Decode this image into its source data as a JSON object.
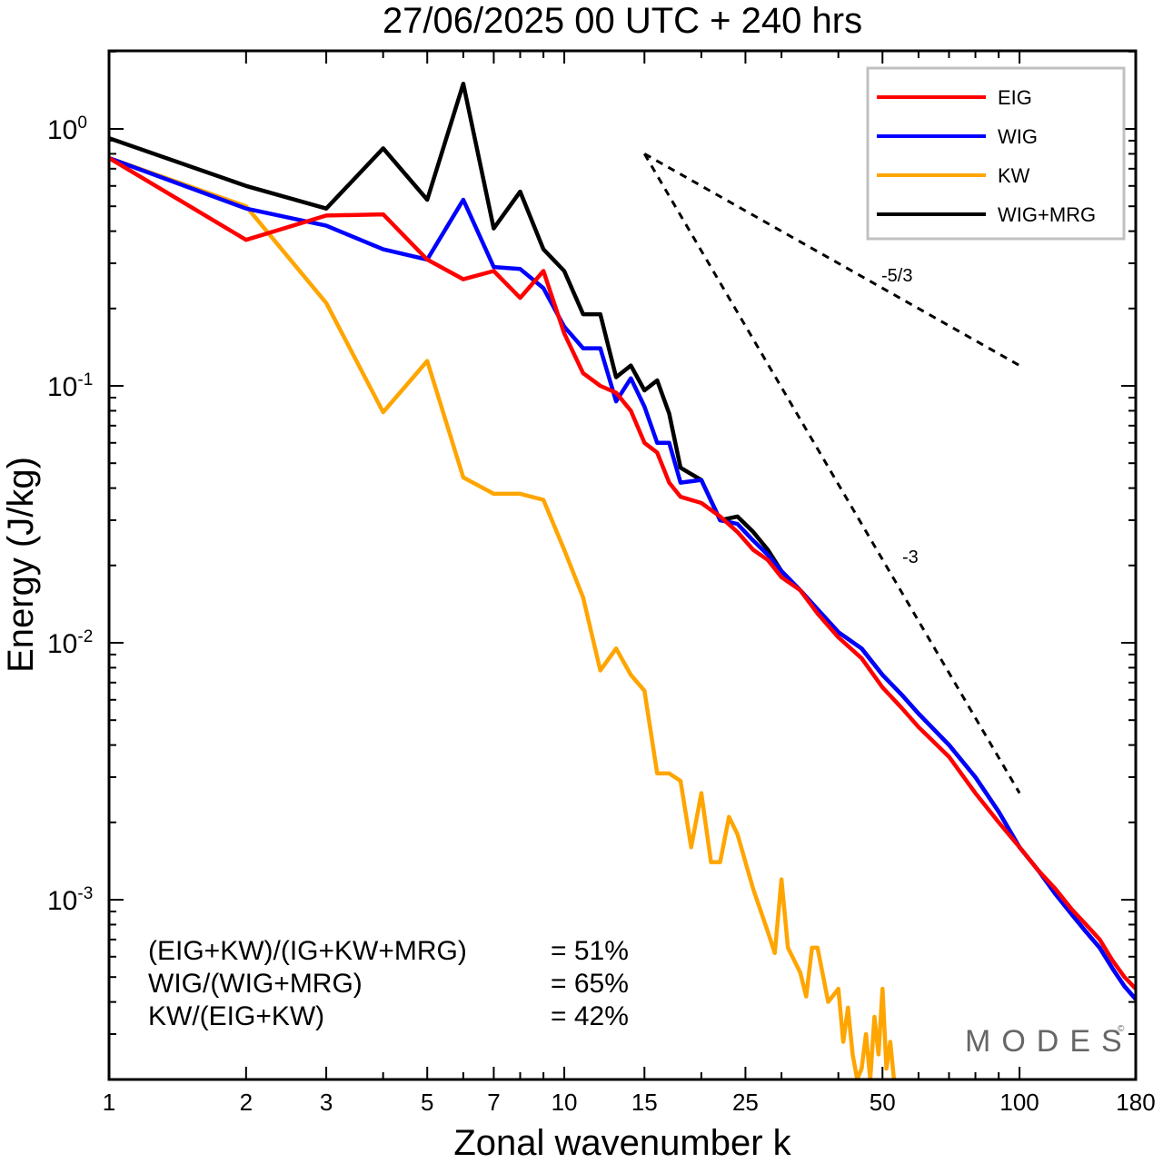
{
  "chart_data": {
    "type": "line",
    "title": "27/06/2025  00 UTC  + 240 hrs",
    "xlabel": "Zonal wavenumber k",
    "ylabel": "Energy (J/kg)",
    "xscale": "log",
    "yscale": "log",
    "xlim": [
      1,
      180
    ],
    "ylim": [
      0.0002,
      2.0
    ],
    "xticks": [
      1,
      2,
      3,
      5,
      7,
      10,
      15,
      25,
      50,
      100,
      180
    ],
    "xtick_labels": [
      "1",
      "2",
      "3",
      "5",
      "7",
      "10",
      "15",
      "25",
      "50",
      "100",
      "180"
    ],
    "yticks": [
      {
        "value": 1.0,
        "base": "10",
        "exp": "0"
      },
      {
        "value": 0.1,
        "base": "10",
        "exp": "-1"
      },
      {
        "value": 0.01,
        "base": "10",
        "exp": "-2"
      },
      {
        "value": 0.001,
        "base": "10",
        "exp": "-3"
      }
    ],
    "legend_position": "top-right",
    "grid": false,
    "series": [
      {
        "name": "EIG",
        "color": "#ff0000",
        "points": [
          [
            1,
            0.77
          ],
          [
            2,
            0.37
          ],
          [
            3,
            0.46
          ],
          [
            4,
            0.465
          ],
          [
            5,
            0.31
          ],
          [
            6,
            0.26
          ],
          [
            7,
            0.28
          ],
          [
            8,
            0.22
          ],
          [
            9,
            0.28
          ],
          [
            10,
            0.16
          ],
          [
            11,
            0.112
          ],
          [
            12,
            0.1
          ],
          [
            13,
            0.094
          ],
          [
            14,
            0.08
          ],
          [
            15,
            0.06
          ],
          [
            16,
            0.055
          ],
          [
            17,
            0.042
          ],
          [
            18,
            0.037
          ],
          [
            20,
            0.035
          ],
          [
            22,
            0.031
          ],
          [
            24,
            0.027
          ],
          [
            26,
            0.023
          ],
          [
            28,
            0.021
          ],
          [
            30,
            0.018
          ],
          [
            33,
            0.016
          ],
          [
            36,
            0.013
          ],
          [
            40,
            0.0105
          ],
          [
            45,
            0.0087
          ],
          [
            50,
            0.0067
          ],
          [
            55,
            0.0056
          ],
          [
            60,
            0.0047
          ],
          [
            70,
            0.0036
          ],
          [
            80,
            0.0026
          ],
          [
            90,
            0.002
          ],
          [
            100,
            0.0016
          ],
          [
            110,
            0.0013
          ],
          [
            120,
            0.0011
          ],
          [
            130,
            0.00092
          ],
          [
            140,
            0.0008
          ],
          [
            150,
            0.0007
          ],
          [
            160,
            0.00058
          ],
          [
            170,
            0.0005
          ],
          [
            180,
            0.00045
          ]
        ]
      },
      {
        "name": "WIG",
        "color": "#0000ff",
        "points": [
          [
            1,
            0.77
          ],
          [
            2,
            0.49
          ],
          [
            3,
            0.42
          ],
          [
            4,
            0.34
          ],
          [
            5,
            0.31
          ],
          [
            6,
            0.53
          ],
          [
            7,
            0.29
          ],
          [
            8,
            0.285
          ],
          [
            9,
            0.24
          ],
          [
            10,
            0.17
          ],
          [
            11,
            0.14
          ],
          [
            12,
            0.14
          ],
          [
            13,
            0.087
          ],
          [
            14,
            0.107
          ],
          [
            15,
            0.083
          ],
          [
            16,
            0.06
          ],
          [
            17,
            0.06
          ],
          [
            18,
            0.042
          ],
          [
            20,
            0.043
          ],
          [
            22,
            0.03
          ],
          [
            24,
            0.029
          ],
          [
            26,
            0.025
          ],
          [
            28,
            0.022
          ],
          [
            30,
            0.019
          ],
          [
            33,
            0.016
          ],
          [
            36,
            0.0135
          ],
          [
            40,
            0.011
          ],
          [
            45,
            0.0095
          ],
          [
            50,
            0.0075
          ],
          [
            55,
            0.0063
          ],
          [
            60,
            0.0053
          ],
          [
            70,
            0.004
          ],
          [
            80,
            0.003
          ],
          [
            90,
            0.0022
          ],
          [
            100,
            0.0016
          ],
          [
            110,
            0.0013
          ],
          [
            120,
            0.00105
          ],
          [
            130,
            0.00088
          ],
          [
            140,
            0.00075
          ],
          [
            150,
            0.00065
          ],
          [
            160,
            0.00054
          ],
          [
            170,
            0.00046
          ],
          [
            180,
            0.00041
          ]
        ]
      },
      {
        "name": "KW",
        "color": "#ffa500",
        "points": [
          [
            1,
            0.77
          ],
          [
            2,
            0.5
          ],
          [
            3,
            0.21
          ],
          [
            4,
            0.079
          ],
          [
            5,
            0.125
          ],
          [
            6,
            0.044
          ],
          [
            7,
            0.038
          ],
          [
            8,
            0.038
          ],
          [
            9,
            0.036
          ],
          [
            10,
            0.023
          ],
          [
            11,
            0.015
          ],
          [
            12,
            0.0078
          ],
          [
            13,
            0.0095
          ],
          [
            14,
            0.0075
          ],
          [
            15,
            0.0065
          ],
          [
            16,
            0.0031
          ],
          [
            17,
            0.0031
          ],
          [
            18,
            0.0029
          ],
          [
            19,
            0.0016
          ],
          [
            20,
            0.0026
          ],
          [
            21,
            0.0014
          ],
          [
            22,
            0.0014
          ],
          [
            23,
            0.0021
          ],
          [
            24,
            0.0018
          ],
          [
            26,
            0.0011
          ],
          [
            28,
            0.00075
          ],
          [
            29,
            0.00062
          ],
          [
            30,
            0.0012
          ],
          [
            31,
            0.00065
          ],
          [
            33,
            0.00052
          ],
          [
            34,
            0.00042
          ],
          [
            35,
            0.00065
          ],
          [
            36,
            0.00065
          ],
          [
            38,
            0.0004
          ],
          [
            40,
            0.00045
          ],
          [
            41,
            0.00028
          ],
          [
            42,
            0.00038
          ],
          [
            43,
            0.00025
          ],
          [
            44,
            0.0002
          ],
          [
            45,
            0.00022
          ],
          [
            46,
            0.0003
          ],
          [
            47,
            0.0002
          ],
          [
            48,
            0.00035
          ],
          [
            49,
            0.00025
          ],
          [
            50,
            0.00045
          ],
          [
            51,
            0.00022
          ],
          [
            52,
            0.00028
          ],
          [
            53,
            0.0002
          ]
        ]
      },
      {
        "name": "WIG+MRG",
        "color": "#000000",
        "points": [
          [
            1,
            0.92
          ],
          [
            2,
            0.6
          ],
          [
            3,
            0.49
          ],
          [
            4,
            0.84
          ],
          [
            5,
            0.53
          ],
          [
            6,
            1.5
          ],
          [
            7,
            0.41
          ],
          [
            8,
            0.57
          ],
          [
            9,
            0.34
          ],
          [
            10,
            0.28
          ],
          [
            11,
            0.19
          ],
          [
            12,
            0.19
          ],
          [
            13,
            0.108
          ],
          [
            14,
            0.12
          ],
          [
            15,
            0.096
          ],
          [
            16,
            0.105
          ],
          [
            17,
            0.078
          ],
          [
            18,
            0.048
          ],
          [
            20,
            0.043
          ],
          [
            22,
            0.03
          ],
          [
            24,
            0.031
          ],
          [
            26,
            0.027
          ],
          [
            28,
            0.023
          ],
          [
            30,
            0.019
          ],
          [
            33,
            0.016
          ],
          [
            36,
            0.0135
          ],
          [
            40,
            0.011
          ],
          [
            45,
            0.0095
          ],
          [
            50,
            0.0075
          ],
          [
            55,
            0.0063
          ],
          [
            60,
            0.0053
          ],
          [
            70,
            0.004
          ],
          [
            80,
            0.003
          ],
          [
            90,
            0.0022
          ],
          [
            100,
            0.0016
          ],
          [
            110,
            0.0013
          ],
          [
            120,
            0.00105
          ],
          [
            130,
            0.00088
          ],
          [
            140,
            0.00075
          ],
          [
            150,
            0.00065
          ],
          [
            160,
            0.00054
          ],
          [
            170,
            0.00046
          ],
          [
            180,
            0.00041
          ]
        ]
      }
    ],
    "reference_lines": [
      {
        "label": "-5/3",
        "from": [
          15,
          0.8
        ],
        "to": [
          100,
          0.12
        ]
      },
      {
        "label": "-3",
        "from": [
          15,
          0.8
        ],
        "to": [
          100,
          0.0026
        ]
      }
    ],
    "annotations": [
      {
        "name": "(EIG+KW)/(IG+KW+MRG)",
        "value": "= 51%"
      },
      {
        "name": "WIG/(WIG+MRG)",
        "value": "= 65%"
      },
      {
        "name": "KW/(EIG+KW)",
        "value": "= 42%"
      }
    ],
    "watermark": "MODES",
    "watermark_symbol": "©"
  }
}
